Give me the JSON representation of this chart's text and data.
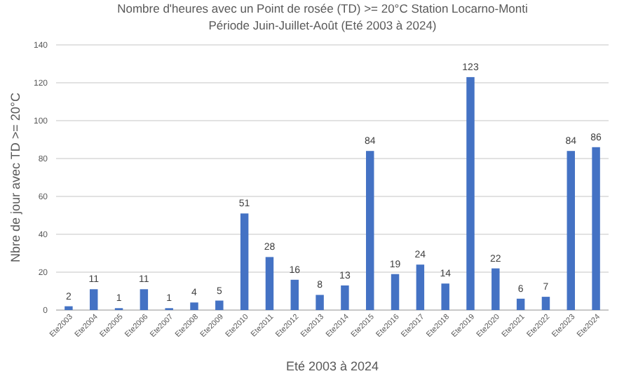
{
  "chart_data": {
    "type": "bar",
    "title": "Nombre d'heures avec un Point de rosée (TD) >= 20°C Station Locarno-Monti",
    "subtitle": "Période Juin-Juillet-Août (Eté 2003 à 2024)",
    "xlabel": "Eté 2003 à 2024",
    "ylabel": "Nbre de jour avec TD >= 20°C",
    "categories": [
      "Ete2003",
      "Ete2004",
      "Ete2005",
      "Ete2006",
      "Ete2007",
      "Ete2008",
      "Ete2009",
      "Ete2010",
      "Ete2011",
      "Ete2012",
      "Ete2013",
      "Ete2014",
      "Ete2015",
      "Ete2016",
      "Ete2017",
      "Ete2018",
      "Ete2019",
      "Ete2020",
      "Ete2021",
      "Ete2022",
      "Ete2023",
      "Ete2024"
    ],
    "values": [
      2,
      11,
      1,
      11,
      1,
      4,
      5,
      51,
      28,
      16,
      8,
      13,
      84,
      19,
      24,
      14,
      123,
      22,
      6,
      7,
      84,
      86
    ],
    "color": "#4472c4",
    "ylim": [
      0,
      140
    ],
    "yticks": [
      0,
      20,
      40,
      60,
      80,
      100,
      120,
      140
    ],
    "grid": "y",
    "data_labels": true
  }
}
